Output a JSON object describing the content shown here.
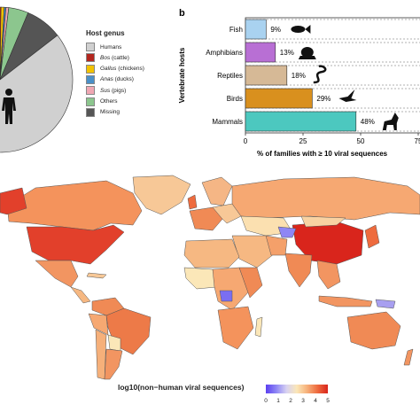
{
  "chart_data": [
    {
      "type": "pie",
      "legend_title": "Host genus",
      "slices": [
        {
          "label": "Humans",
          "value": 85,
          "color": "#d0d0d0"
        },
        {
          "label": "Bos (cattle)",
          "value": 0.7,
          "color": "#b3261e"
        },
        {
          "label": "Gallus (chickens)",
          "value": 0.7,
          "color": "#f2c200"
        },
        {
          "label": "Anas (ducks)",
          "value": 0.4,
          "color": "#4a90c8"
        },
        {
          "label": "Sus (pigs)",
          "value": 0.6,
          "color": "#f0a7b3"
        },
        {
          "label": "Others",
          "value": 4.4,
          "color": "#8cc68e"
        },
        {
          "label": "Missing",
          "value": 8.2,
          "color": "#555555"
        }
      ],
      "legend": [
        {
          "genus": "",
          "rest": "Humans",
          "italic": false
        },
        {
          "genus": "Bos",
          "rest": " (cattle)",
          "italic": true
        },
        {
          "genus": "Gallus",
          "rest": " (chickens)",
          "italic": true
        },
        {
          "genus": "Anas",
          "rest": " (ducks)",
          "italic": true
        },
        {
          "genus": "Sus",
          "rest": " (pigs)",
          "italic": true
        },
        {
          "genus": "",
          "rest": "Others",
          "italic": false
        },
        {
          "genus": "",
          "rest": "Missing",
          "italic": false
        }
      ]
    },
    {
      "type": "bar",
      "panel_label": "b",
      "orientation": "horizontal",
      "categories": [
        "Fish",
        "Amphibians",
        "Reptiles",
        "Birds",
        "Mammals"
      ],
      "values": [
        9,
        13,
        18,
        29,
        48
      ],
      "value_labels": [
        "9%",
        "13%",
        "18%",
        "29%",
        "48%"
      ],
      "colors": [
        "#a9d2f0",
        "#b86fd4",
        "#d6b996",
        "#d9901e",
        "#4cc8bf"
      ],
      "ylabel": "Vertebrate hosts",
      "xlabel": "% of families with ≥ 10 viral sequences",
      "xticks": [
        0,
        25,
        50,
        75
      ],
      "xlim": [
        0,
        75
      ],
      "icons": [
        "fish-icon",
        "frog-icon",
        "snake-icon",
        "bird-icon",
        "wolf-icon"
      ]
    },
    {
      "type": "choropleth",
      "colorbar_title": "log10(non−human viral sequences)",
      "colorbar_ticks": [
        "0",
        "1",
        "2",
        "3",
        "4",
        "5"
      ],
      "range": [
        0,
        5
      ],
      "colors": {
        "low": "#5b3ff0",
        "mid": "#fbe7b8",
        "high": "#d9251c"
      }
    }
  ]
}
